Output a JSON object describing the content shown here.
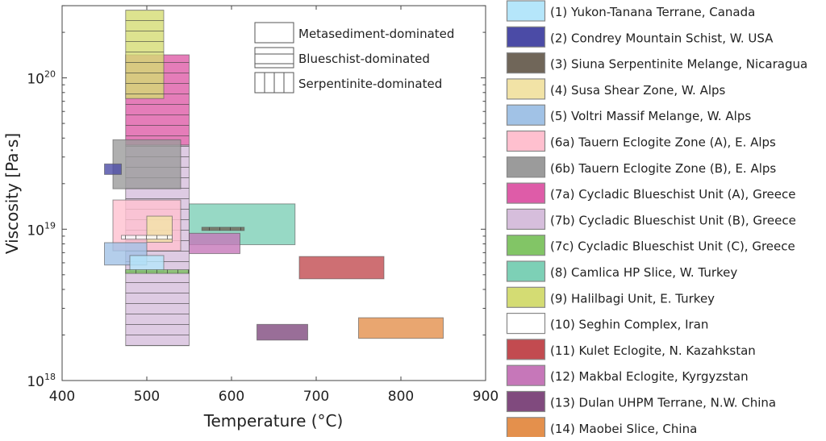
{
  "chart_data": {
    "type": "range-box",
    "xlabel": "Temperature (°C)",
    "xlabel_parts": [
      "Temperature (",
      "o",
      "C)"
    ],
    "ylabel": "Viscosity [Pa·s]",
    "xlim": [
      400,
      900
    ],
    "ylim": [
      1e+18,
      3e+20
    ],
    "yscale": "log",
    "xticks": [
      400,
      500,
      600,
      700,
      800,
      900
    ],
    "xtick_labels": [
      "400",
      "500",
      "600",
      "700",
      "800",
      "900"
    ],
    "yticks": [
      {
        "value": 1e+18,
        "base": "10",
        "exp": "18"
      },
      {
        "value": 1e+19,
        "base": "10",
        "exp": "19"
      },
      {
        "value": 1e+20,
        "base": "10",
        "exp": "20"
      }
    ],
    "grid": false,
    "pattern_legend": {
      "placement": "top-right",
      "entries": [
        {
          "label": "Metasediment-dominated",
          "pattern": "none"
        },
        {
          "label": "Blueschist-dominated",
          "pattern": "horizontal"
        },
        {
          "label": "Serpentinite-dominated",
          "pattern": "vertical"
        }
      ]
    },
    "series": [
      {
        "id": "7b",
        "name": "(7b) Cycladic Blueschist Unit (B), Greece",
        "color": "#d6bedc",
        "pattern": "horizontal",
        "T": [
          475,
          550
        ],
        "viscosity": [
          1.7e+18,
          3.6e+19
        ]
      },
      {
        "id": "7a",
        "name": "(7a) Cycladic Blueschist Unit (A), Greece",
        "color": "#de5ca8",
        "pattern": "horizontal",
        "T": [
          475,
          550
        ],
        "viscosity": [
          3.6e+19,
          1.42e+20
        ]
      },
      {
        "id": "9",
        "name": "(9) Halilbagi Unit, E. Turkey",
        "color": "#d4dc73",
        "pattern": "horizontal",
        "T": [
          475,
          520
        ],
        "viscosity": [
          7.3e+19,
          2.8e+20
        ]
      },
      {
        "id": "6b",
        "name": "(6b) Tauern Eclogite Zone (B), E. Alps",
        "color": "#9b9b9b",
        "pattern": "none",
        "T": [
          460,
          540
        ],
        "viscosity": [
          1.85e+19,
          3.9e+19
        ]
      },
      {
        "id": "2",
        "name": "(2) Condrey Mountain Schist, W. USA",
        "color": "#4b4ba6",
        "pattern": "none",
        "T": [
          450,
          470
        ],
        "viscosity": [
          2.3e+19,
          2.7e+19
        ]
      },
      {
        "id": "6a",
        "name": "(6a) Tauern Eclogite Zone (A), E. Alps",
        "color": "#ffc0cf",
        "pattern": "none",
        "T": [
          460,
          540
        ],
        "viscosity": [
          7.2e+18,
          1.56e+19
        ]
      },
      {
        "id": "4",
        "name": "(4) Susa Shear Zone, W. Alps",
        "color": "#f2e3a6",
        "pattern": "none",
        "T": [
          500,
          530
        ],
        "viscosity": [
          8.2e+18,
          1.22e+19
        ]
      },
      {
        "id": "10",
        "name": "(10) Seghin Complex, Iran",
        "color": "#ffffff",
        "pattern": "vertical",
        "T": [
          470,
          530
        ],
        "viscosity": [
          8.6e+18,
          9.1e+18
        ]
      },
      {
        "id": "5",
        "name": "(5) Voltri Massif Melange, W. Alps",
        "color": "#a1c2e6",
        "pattern": "none",
        "T": [
          450,
          500
        ],
        "viscosity": [
          5.8e+18,
          8.15e+18
        ]
      },
      {
        "id": "1",
        "name": "(1) Yukon-Tanana Terrane, Canada",
        "color": "#b5e6fa",
        "pattern": "none",
        "T": [
          480,
          520
        ],
        "viscosity": [
          5.25e+18,
          6.7e+18
        ]
      },
      {
        "id": "7c",
        "name": "(7c) Cycladic Blueschist Unit (C), Greece",
        "color": "#82c566",
        "pattern": "vertical",
        "T": [
          475,
          550
        ],
        "viscosity": [
          5.1e+18,
          5.4e+18
        ]
      },
      {
        "id": "8",
        "name": "(8) Camlica HP Slice, W. Turkey",
        "color": "#7dd0b6",
        "pattern": "none",
        "T": [
          550,
          675
        ],
        "viscosity": [
          7.9e+18,
          1.47e+19
        ]
      },
      {
        "id": "12",
        "name": "(12) Makbal Eclogite, Kyrgyzstan",
        "color": "#c677b9",
        "pattern": "none",
        "T": [
          550,
          610
        ],
        "viscosity": [
          6.9e+18,
          9.4e+18
        ]
      },
      {
        "id": "3",
        "name": "(3) Siuna Serpentinite Melange, Nicaragua",
        "color": "#706659",
        "pattern": "vertical",
        "T": [
          565,
          615
        ],
        "viscosity": [
          9.8e+18,
          1.03e+19
        ]
      },
      {
        "id": "11",
        "name": "(11) Kulet Eclogite, N. Kazahkstan",
        "color": "#c24b50",
        "pattern": "none",
        "T": [
          680,
          780
        ],
        "viscosity": [
          4.7e+18,
          6.6e+18
        ]
      },
      {
        "id": "13",
        "name": "(13) Dulan UHPM Terrane, N.W. China",
        "color": "#804a7e",
        "pattern": "none",
        "T": [
          630,
          690
        ],
        "viscosity": [
          1.85e+18,
          2.35e+18
        ]
      },
      {
        "id": "14",
        "name": "(14) Maobei Slice, China",
        "color": "#e4904c",
        "pattern": "none",
        "T": [
          750,
          850
        ],
        "viscosity": [
          1.9e+18,
          2.6e+18
        ]
      }
    ],
    "legend": {
      "placement": "right-outside",
      "order": [
        "1",
        "2",
        "3",
        "4",
        "5",
        "6a",
        "6b",
        "7a",
        "7b",
        "7c",
        "8",
        "9",
        "10",
        "11",
        "12",
        "13",
        "14"
      ]
    }
  }
}
